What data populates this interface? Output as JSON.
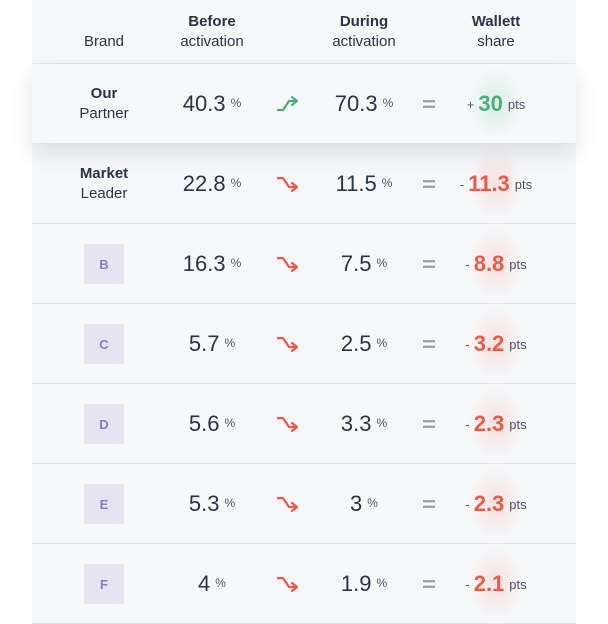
{
  "header": {
    "brand": "Brand",
    "before_l1": "Before",
    "before_l2": "activation",
    "during_l1": "During",
    "during_l2": "activation",
    "share_l1": "Wallett",
    "share_l2": "share"
  },
  "colors": {
    "positive": "#4caf7a",
    "negative": "#ea5a48",
    "badge_bg": "#e6e4f1",
    "badge_text": "#8b7cc3"
  },
  "rows": [
    {
      "brand_l1": "Our",
      "brand_l2": "Partner",
      "before": "40.3",
      "before_unit": "%",
      "during": "70.3",
      "during_unit": "%",
      "trend": "up",
      "eq": "=",
      "sign": "+",
      "share": "30",
      "share_unit": "pts"
    },
    {
      "brand_l1": "Market",
      "brand_l2": "Leader",
      "before": "22.8",
      "before_unit": "%",
      "during": "11.5",
      "during_unit": "%",
      "trend": "down",
      "eq": "=",
      "sign": "-",
      "share": "11.3",
      "share_unit": "pts"
    },
    {
      "badge": "B",
      "before": "16.3",
      "before_unit": "%",
      "during": "7.5",
      "during_unit": "%",
      "trend": "down",
      "eq": "=",
      "sign": "-",
      "share": "8.8",
      "share_unit": "pts"
    },
    {
      "badge": "C",
      "before": "5.7",
      "before_unit": "%",
      "during": "2.5",
      "during_unit": "%",
      "trend": "down",
      "eq": "=",
      "sign": "-",
      "share": "3.2",
      "share_unit": "pts"
    },
    {
      "badge": "D",
      "before": "5.6",
      "before_unit": "%",
      "during": "3.3",
      "during_unit": "%",
      "trend": "down",
      "eq": "=",
      "sign": "-",
      "share": "2.3",
      "share_unit": "pts"
    },
    {
      "badge": "E",
      "before": "5.3",
      "before_unit": "%",
      "during": "3",
      "during_unit": "%",
      "trend": "down",
      "eq": "=",
      "sign": "-",
      "share": "2.3",
      "share_unit": "pts"
    },
    {
      "badge": "F",
      "before": "4",
      "before_unit": "%",
      "during": "1.9",
      "during_unit": "%",
      "trend": "down",
      "eq": "=",
      "sign": "-",
      "share": "2.1",
      "share_unit": "pts"
    }
  ]
}
